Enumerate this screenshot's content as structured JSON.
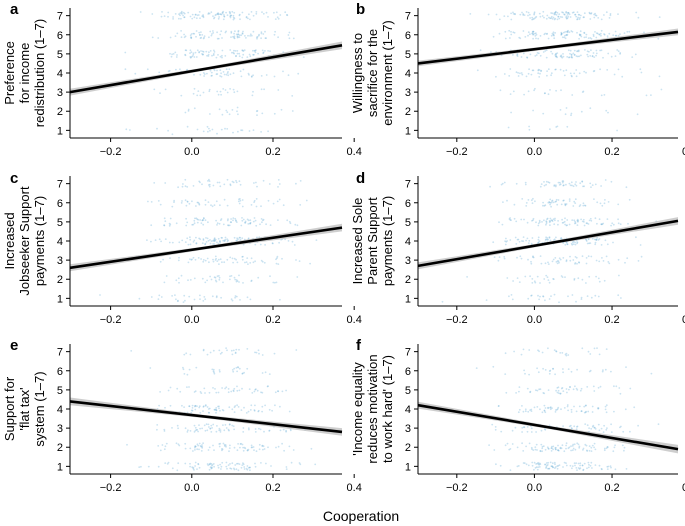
{
  "figure": {
    "xlabel": "Cooperation",
    "point_color": "#6baed6",
    "line_color": "#000000",
    "band_color": "#bdbdbd"
  },
  "chart_data": [
    {
      "type": "scatter",
      "panel": "a",
      "ylabel": [
        "Preference",
        "for income",
        "redistribution (1–7)"
      ],
      "xlim": [
        -0.3,
        0.37
      ],
      "ylim": [
        0.6,
        7.4
      ],
      "xticks": [
        -0.2,
        0.0,
        0.2,
        0.4
      ],
      "xtick_labels": [
        "−0.2",
        "0.0",
        "0.2",
        "0.4"
      ],
      "yticks": [
        1,
        2,
        3,
        4,
        5,
        6,
        7
      ],
      "ytick_labels": [
        "1",
        "2",
        "3",
        "4",
        "5",
        "6",
        "7"
      ],
      "fit": {
        "x": [
          -0.3,
          0.37
        ],
        "y": [
          3.0,
          5.45
        ],
        "band_halfwidth": [
          0.18,
          0.2
        ]
      },
      "response_weights": [
        0.06,
        0.05,
        0.07,
        0.13,
        0.22,
        0.22,
        0.25
      ]
    },
    {
      "type": "scatter",
      "panel": "b",
      "ylabel": [
        "Willingness to",
        "sacrifice for the",
        "environment (1–7)"
      ],
      "xlim": [
        -0.3,
        0.37
      ],
      "ylim": [
        0.6,
        7.4
      ],
      "xticks": [
        -0.2,
        0.0,
        0.2,
        0.4
      ],
      "xtick_labels": [
        "−0.2",
        "0.0",
        "0.2",
        "0.4"
      ],
      "yticks": [
        1,
        2,
        3,
        4,
        5,
        6,
        7
      ],
      "ytick_labels": [
        "1",
        "2",
        "3",
        "4",
        "5",
        "6",
        "7"
      ],
      "fit": {
        "x": [
          -0.3,
          0.37
        ],
        "y": [
          4.5,
          6.15
        ],
        "band_halfwidth": [
          0.15,
          0.18
        ]
      },
      "response_weights": [
        0.02,
        0.03,
        0.05,
        0.13,
        0.22,
        0.27,
        0.28
      ]
    },
    {
      "type": "scatter",
      "panel": "c",
      "ylabel": [
        "Increased",
        "Jobseeker Support",
        "payments (1–7)"
      ],
      "xlim": [
        -0.3,
        0.37
      ],
      "ylim": [
        0.6,
        7.4
      ],
      "xticks": [
        -0.2,
        0.0,
        0.2,
        0.4
      ],
      "xtick_labels": [
        "−0.2",
        "0.0",
        "0.2",
        "0.4"
      ],
      "yticks": [
        1,
        2,
        3,
        4,
        5,
        6,
        7
      ],
      "ytick_labels": [
        "1",
        "2",
        "3",
        "4",
        "5",
        "6",
        "7"
      ],
      "fit": {
        "x": [
          -0.3,
          0.37
        ],
        "y": [
          2.6,
          4.7
        ],
        "band_halfwidth": [
          0.18,
          0.2
        ]
      },
      "response_weights": [
        0.08,
        0.1,
        0.15,
        0.25,
        0.2,
        0.12,
        0.1
      ]
    },
    {
      "type": "scatter",
      "panel": "d",
      "ylabel": [
        "Increased Sole",
        "Parent Support",
        "payments (1–7)"
      ],
      "xlim": [
        -0.3,
        0.37
      ],
      "ylim": [
        0.6,
        7.4
      ],
      "xticks": [
        -0.2,
        0.0,
        0.2,
        0.4
      ],
      "xtick_labels": [
        "−0.2",
        "0.0",
        "0.2",
        "0.4"
      ],
      "yticks": [
        1,
        2,
        3,
        4,
        5,
        6,
        7
      ],
      "ytick_labels": [
        "1",
        "2",
        "3",
        "4",
        "5",
        "6",
        "7"
      ],
      "fit": {
        "x": [
          -0.3,
          0.37
        ],
        "y": [
          2.7,
          5.05
        ],
        "band_halfwidth": [
          0.18,
          0.2
        ]
      },
      "response_weights": [
        0.07,
        0.08,
        0.14,
        0.24,
        0.21,
        0.14,
        0.12
      ]
    },
    {
      "type": "scatter",
      "panel": "e",
      "ylabel": [
        "Support for",
        "'flat tax'",
        "system (1–7)"
      ],
      "xlim": [
        -0.3,
        0.37
      ],
      "ylim": [
        0.6,
        7.4
      ],
      "xticks": [
        -0.2,
        0.0,
        0.2,
        0.4
      ],
      "xtick_labels": [
        "−0.2",
        "0.0",
        "0.2",
        "0.4"
      ],
      "yticks": [
        1,
        2,
        3,
        4,
        5,
        6,
        7
      ],
      "ytick_labels": [
        "1",
        "2",
        "3",
        "4",
        "5",
        "6",
        "7"
      ],
      "fit": {
        "x": [
          -0.3,
          0.37
        ],
        "y": [
          4.4,
          2.8
        ],
        "band_halfwidth": [
          0.2,
          0.2
        ]
      },
      "response_weights": [
        0.2,
        0.2,
        0.17,
        0.18,
        0.11,
        0.07,
        0.07
      ]
    },
    {
      "type": "scatter",
      "panel": "f",
      "ylabel": [
        "'Income equality",
        "reduces motivation",
        "to work hard' (1–7)"
      ],
      "xlim": [
        -0.3,
        0.37
      ],
      "ylim": [
        0.6,
        7.4
      ],
      "xticks": [
        -0.2,
        0.0,
        0.2,
        0.4
      ],
      "xtick_labels": [
        "−0.2",
        "0.0",
        "0.2",
        "0.4"
      ],
      "yticks": [
        1,
        2,
        3,
        4,
        5,
        6,
        7
      ],
      "ytick_labels": [
        "1",
        "2",
        "3",
        "4",
        "5",
        "6",
        "7"
      ],
      "fit": {
        "x": [
          -0.3,
          0.37
        ],
        "y": [
          4.2,
          1.9
        ],
        "band_halfwidth": [
          0.18,
          0.22
        ]
      },
      "response_weights": [
        0.22,
        0.22,
        0.17,
        0.15,
        0.11,
        0.07,
        0.06
      ]
    }
  ]
}
